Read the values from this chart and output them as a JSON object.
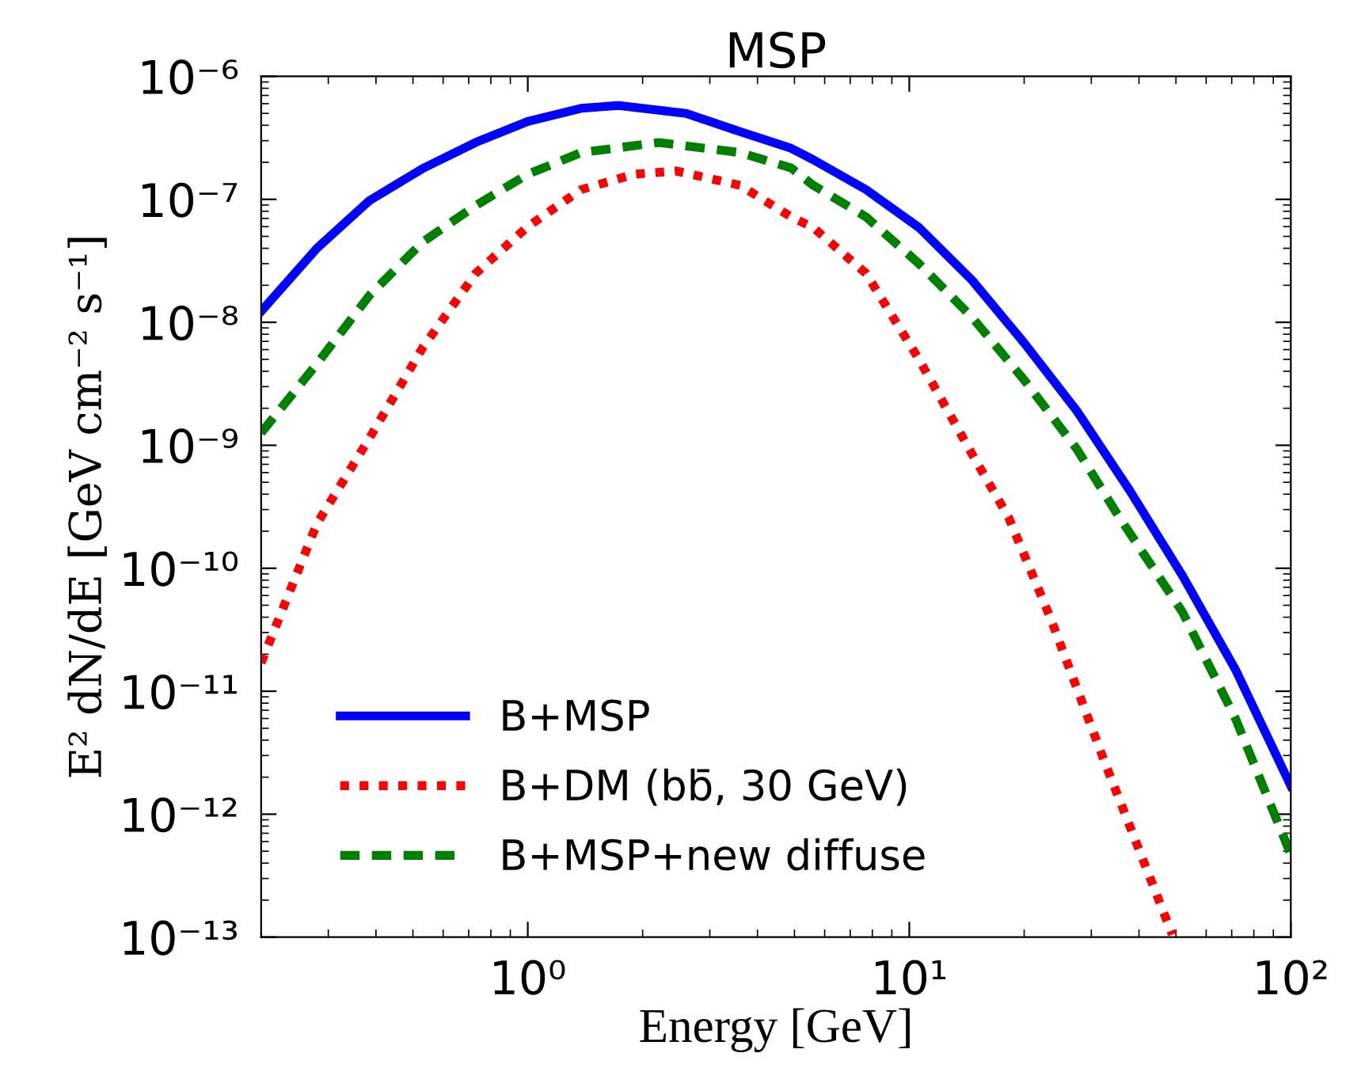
{
  "chart_data": {
    "type": "line",
    "title": "MSP",
    "xlabel": "Energy [GeV]",
    "ylabel": "E² dN/dE [GeV cm⁻² s⁻¹]",
    "log": "xy",
    "xlim": [
      0.2,
      100
    ],
    "ylim": [
      1e-13,
      1e-06
    ],
    "xticks": [
      {
        "value": 1,
        "label": "10⁰"
      },
      {
        "value": 10,
        "label": "10¹"
      },
      {
        "value": 100,
        "label": "10²"
      }
    ],
    "yticks": [
      {
        "value": 1e-13,
        "label": "10⁻¹³"
      },
      {
        "value": 1e-12,
        "label": "10⁻¹²"
      },
      {
        "value": 1e-11,
        "label": "10⁻¹¹"
      },
      {
        "value": 1e-10,
        "label": "10⁻¹⁰"
      },
      {
        "value": 1e-09,
        "label": "10⁻⁹"
      },
      {
        "value": 1e-08,
        "label": "10⁻⁸"
      },
      {
        "value": 1e-07,
        "label": "10⁻⁷"
      },
      {
        "value": 1e-06,
        "label": "10⁻⁶"
      }
    ],
    "grid": false,
    "legend": "bottom left",
    "series": [
      {
        "name": "B+MSP",
        "color": "#0000ff",
        "line_style": "solid",
        "x": [
          0.2,
          0.28,
          0.385,
          0.53,
          0.73,
          1,
          1.38,
          1.73,
          2.6,
          3.6,
          4.9,
          5.6,
          7.7,
          10.6,
          14.6,
          20,
          27.5,
          37.8,
          52,
          71.6,
          100
        ],
        "values": [
          1.23e-08,
          4e-08,
          9.8e-08,
          1.78e-07,
          2.9e-07,
          4.3e-07,
          5.5e-07,
          5.8e-07,
          5e-07,
          3.55e-07,
          2.6e-07,
          2.1e-07,
          1.2e-07,
          5.9e-08,
          2.2e-08,
          6.8e-09,
          1.9e-09,
          4.3e-10,
          8.7e-11,
          1.5e-11,
          1.7e-12
        ]
      },
      {
        "name": "B+DM (bb̄, 30 GeV)",
        "color": "#ff0000",
        "line_style": "dotted",
        "x": [
          0.2,
          0.28,
          0.385,
          0.53,
          0.73,
          1,
          1.38,
          1.9,
          2.45,
          3.6,
          4.9,
          5.6,
          7.7,
          10.6,
          14.6,
          18.2,
          23.4,
          32.3,
          48.9
        ],
        "values": [
          1.7e-11,
          2.3e-10,
          1.15e-09,
          6.2e-09,
          2.5e-08,
          6e-08,
          1.2e-07,
          1.6e-07,
          1.7e-07,
          1.3e-07,
          7.2e-08,
          5.9e-08,
          2.5e-08,
          5e-09,
          8.5e-10,
          2.6e-10,
          4e-11,
          2.8e-12,
          1.05e-13
        ]
      },
      {
        "name": "B+MSP+new diffuse",
        "color": "#008000",
        "line_style": "dashed",
        "x": [
          0.2,
          0.28,
          0.385,
          0.53,
          0.73,
          1,
          1.38,
          2.2,
          3.6,
          4.9,
          5.6,
          7.7,
          10.6,
          14.6,
          20,
          27.5,
          35.5,
          52,
          71.6,
          100
        ],
        "values": [
          1.26e-09,
          4.6e-09,
          1.66e-08,
          4.5e-08,
          8.9e-08,
          1.6e-07,
          2.4e-07,
          2.9e-07,
          2.4e-07,
          1.8e-07,
          1.3e-07,
          7.2e-08,
          3e-08,
          1.1e-08,
          3.4e-09,
          9.3e-10,
          2.6e-10,
          4.4e-11,
          6e-12,
          4.7e-13
        ]
      }
    ]
  }
}
